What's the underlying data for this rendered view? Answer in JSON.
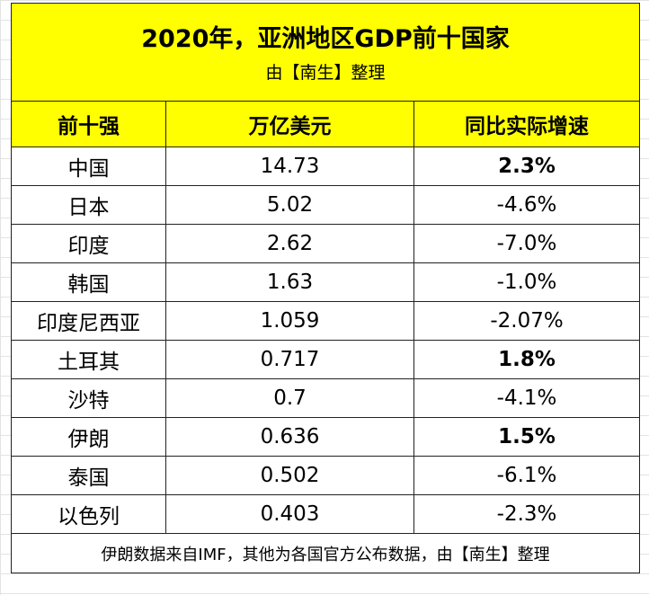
{
  "header": {
    "title": "2020年，亚洲地区GDP前十国家",
    "subtitle": "由【南生】整理"
  },
  "columns": [
    "前十强",
    "万亿美元",
    "同比实际增速"
  ],
  "rows": [
    {
      "country": "中国",
      "gdp": "14.73",
      "growth": "2.3%",
      "bold": true
    },
    {
      "country": "日本",
      "gdp": "5.02",
      "growth": "-4.6%",
      "bold": false
    },
    {
      "country": "印度",
      "gdp": "2.62",
      "growth": "-7.0%",
      "bold": false
    },
    {
      "country": "韩国",
      "gdp": "1.63",
      "growth": "-1.0%",
      "bold": false
    },
    {
      "country": "印度尼西亚",
      "gdp": "1.059",
      "growth": "-2.07%",
      "bold": false
    },
    {
      "country": "土耳其",
      "gdp": "0.717",
      "growth": "1.8%",
      "bold": true
    },
    {
      "country": "沙特",
      "gdp": "0.7",
      "growth": "-4.1%",
      "bold": false
    },
    {
      "country": "伊朗",
      "gdp": "0.636",
      "growth": "1.5%",
      "bold": true
    },
    {
      "country": "泰国",
      "gdp": "0.502",
      "growth": "-6.1%",
      "bold": false
    },
    {
      "country": "以色列",
      "gdp": "0.403",
      "growth": "-2.3%",
      "bold": false
    }
  ],
  "footer": "伊朗数据来自IMF，其他为各国官方公布数据，由【南生】整理",
  "colors": {
    "header_bg": "#ffff00",
    "border": "#222222"
  }
}
